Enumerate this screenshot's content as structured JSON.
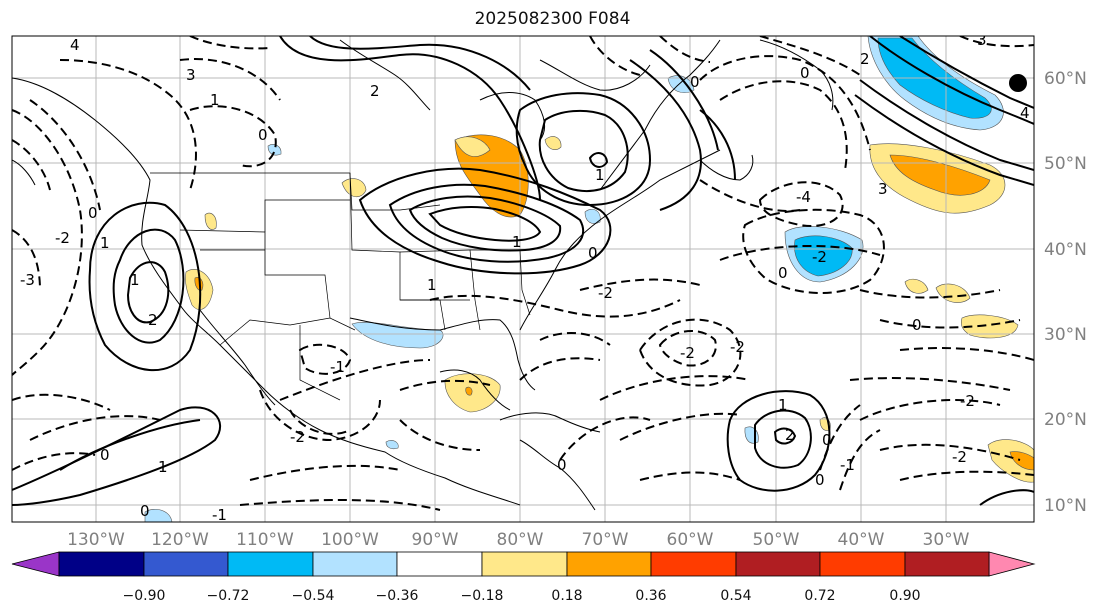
{
  "title": "2025082300 F084",
  "lon_labels": [
    "130°W",
    "120°W",
    "110°W",
    "100°W",
    "90°W",
    "80°W",
    "70°W",
    "60°W",
    "50°W",
    "40°W",
    "30°W"
  ],
  "lat_labels": [
    "60°N",
    "50°N",
    "40°N",
    "30°N",
    "20°N",
    "10°N"
  ],
  "colorbar": {
    "ticks": [
      "−0.90",
      "−0.72",
      "−0.54",
      "−0.36",
      "−0.18",
      "0.18",
      "0.36",
      "0.54",
      "0.72",
      "0.90"
    ],
    "colors": [
      "#9a35c8",
      "#000087",
      "#3459d0",
      "#00baf5",
      "#b2e2ff",
      "#ffffff",
      "#ffe88a",
      "#ffa200",
      "#ff3c00",
      "#b01e22",
      "#ff88b0"
    ]
  },
  "contour_labels": [
    "4",
    "3",
    "2",
    "1",
    "0",
    "-1",
    "-2",
    "-3",
    "-4"
  ],
  "marker": "black-dot"
}
